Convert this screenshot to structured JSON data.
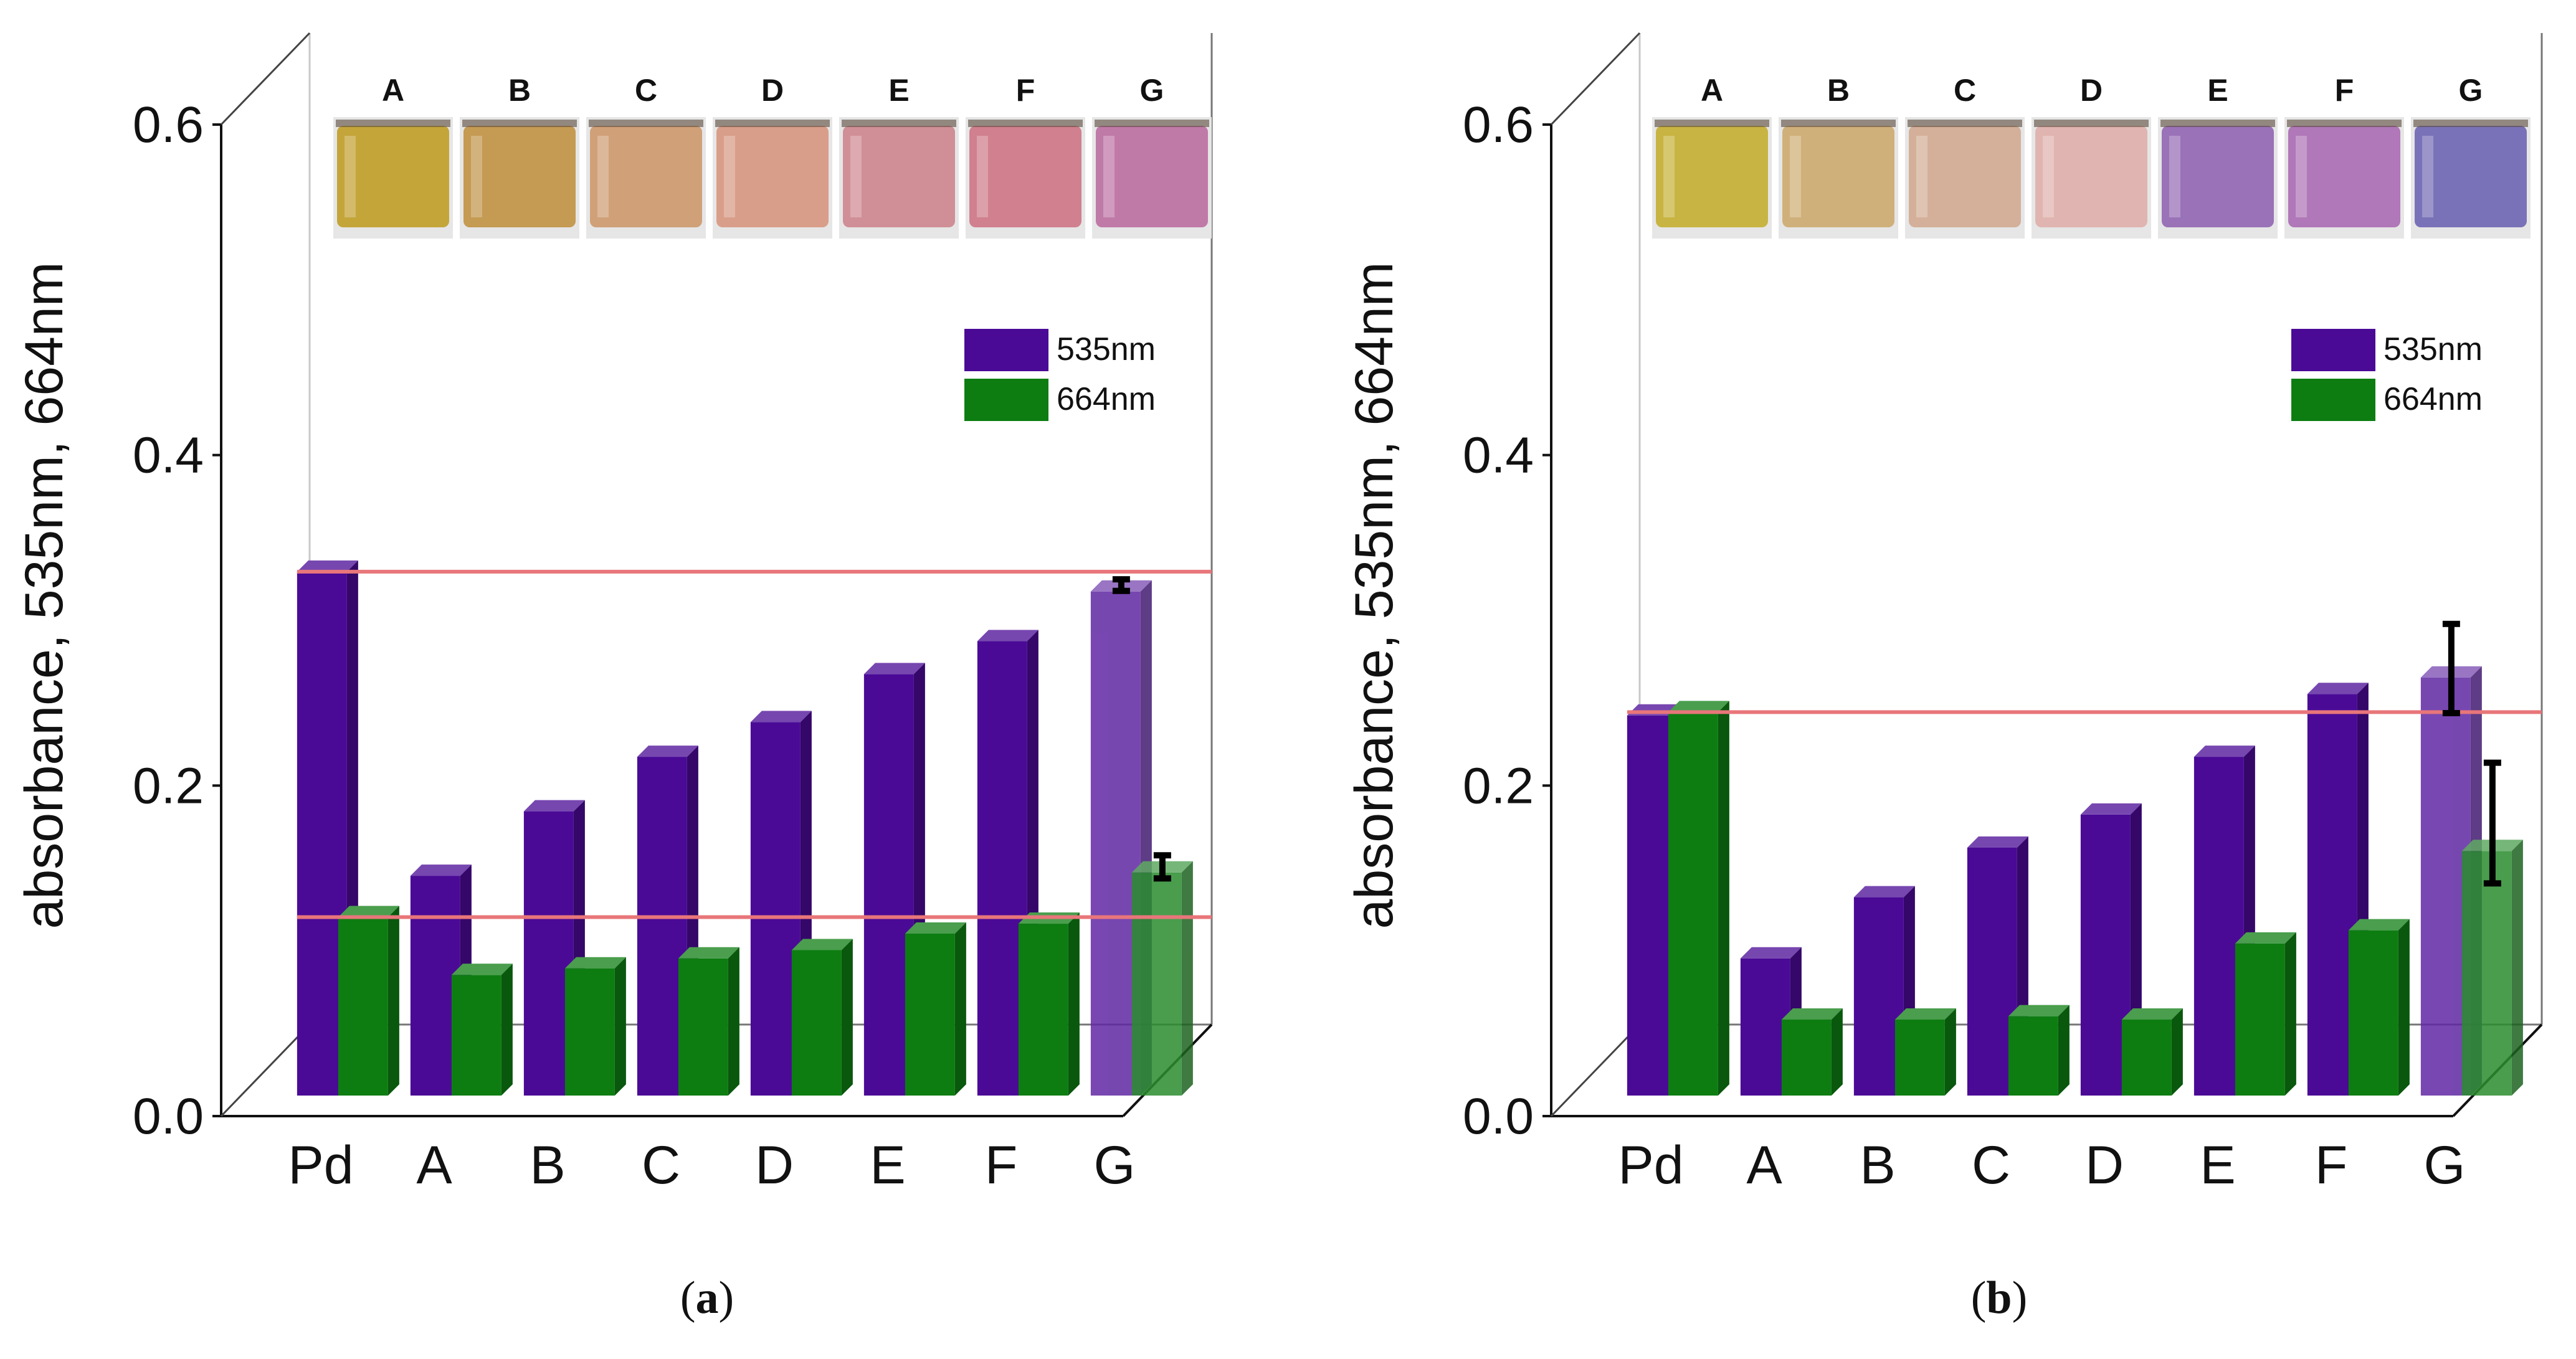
{
  "chart_data": [
    {
      "type": "bar",
      "panel": "a",
      "caption": {
        "open": "(",
        "letter": "a",
        "close": ")"
      },
      "ylabel": "absorbance, 535nm, 664nm",
      "ylim": [
        0.0,
        0.6
      ],
      "yticks": [
        "0.0",
        "0.2",
        "0.4",
        "0.6"
      ],
      "categories": [
        "Pd",
        "A",
        "B",
        "C",
        "D",
        "E",
        "F",
        "G"
      ],
      "series": [
        {
          "name": "535nm",
          "color": "#4a0a96",
          "values": [
            0.317,
            0.133,
            0.172,
            0.205,
            0.226,
            0.255,
            0.275,
            0.305
          ]
        },
        {
          "name": "664nm",
          "color": "#0d7d12",
          "values": [
            0.108,
            0.073,
            0.077,
            0.083,
            0.088,
            0.098,
            0.104,
            0.135
          ]
        }
      ],
      "error_bars": [
        {
          "category": "G",
          "series": "535nm",
          "low": 0.302,
          "high": 0.309
        },
        {
          "category": "G",
          "series": "664nm",
          "low": 0.128,
          "high": 0.142
        }
      ],
      "reference_lines": [
        0.317,
        0.108
      ],
      "vials": [
        {
          "label": "A",
          "color": "#c4a53a"
        },
        {
          "label": "B",
          "color": "#c59a52"
        },
        {
          "label": "C",
          "color": "#d0a078"
        },
        {
          "label": "D",
          "color": "#d89e8a"
        },
        {
          "label": "E",
          "color": "#d08e96"
        },
        {
          "label": "F",
          "color": "#d0808e"
        },
        {
          "label": "G",
          "color": "#c07aa8"
        }
      ]
    },
    {
      "type": "bar",
      "panel": "b",
      "caption": {
        "open": "(",
        "letter": "b",
        "close": ")"
      },
      "ylabel": "absorbance, 535nm, 664nm",
      "ylim": [
        0.0,
        0.6
      ],
      "yticks": [
        "0.0",
        "0.2",
        "0.4",
        "0.6"
      ],
      "categories": [
        "Pd",
        "A",
        "B",
        "C",
        "D",
        "E",
        "F",
        "G"
      ],
      "series": [
        {
          "name": "535nm",
          "color": "#4a0a96",
          "values": [
            0.23,
            0.083,
            0.12,
            0.15,
            0.17,
            0.205,
            0.243,
            0.253
          ]
        },
        {
          "name": "664nm",
          "color": "#0d7d12",
          "values": [
            0.232,
            0.046,
            0.046,
            0.048,
            0.046,
            0.092,
            0.1,
            0.148
          ]
        }
      ],
      "error_bars": [
        {
          "category": "G",
          "series": "535nm",
          "low": 0.228,
          "high": 0.282
        },
        {
          "category": "G",
          "series": "664nm",
          "low": 0.125,
          "high": 0.198
        }
      ],
      "reference_lines": [
        0.232
      ],
      "vials": [
        {
          "label": "A",
          "color": "#c8b442"
        },
        {
          "label": "B",
          "color": "#d0b07a"
        },
        {
          "label": "C",
          "color": "#d4b09a"
        },
        {
          "label": "D",
          "color": "#e0b4b0"
        },
        {
          "label": "E",
          "color": "#9a72b8"
        },
        {
          "label": "F",
          "color": "#b078b8"
        },
        {
          "label": "G",
          "color": "#7a72b8"
        }
      ]
    }
  ]
}
